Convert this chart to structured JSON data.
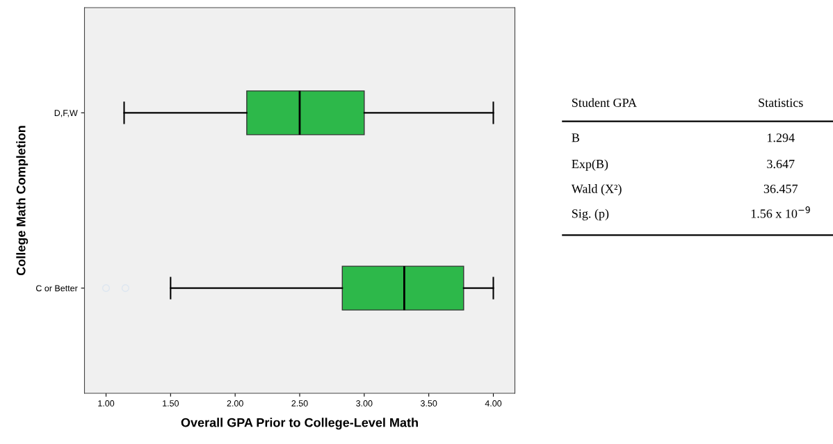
{
  "chart_data": [
    {
      "type": "box",
      "orientation": "horizontal",
      "xlabel": "Overall GPA Prior to College-Level Math",
      "ylabel": "College Math Completion",
      "categories": [
        "D,F,W",
        "C or Better"
      ],
      "color": "#2db84a",
      "boxes": [
        {
          "low": 1.14,
          "q1": 2.09,
          "median": 2.5,
          "q3": 3.0,
          "high": 4.0
        },
        {
          "low": 1.5,
          "q1": 2.83,
          "median": 3.31,
          "q3": 3.77,
          "high": 4.0,
          "outliers": [
            1.0,
            1.15
          ]
        }
      ],
      "xlim": [
        0.833,
        4.167
      ],
      "xticks": [
        {
          "value": 1,
          "label": "1.00"
        },
        {
          "value": 1.5,
          "label": "1.50"
        },
        {
          "value": 2,
          "label": "2.00"
        },
        {
          "value": 2.5,
          "label": "2.50"
        },
        {
          "value": 3,
          "label": "3.00"
        },
        {
          "value": 3.5,
          "label": "3.50"
        },
        {
          "value": 4,
          "label": "4.00"
        }
      ],
      "grid": false
    },
    {
      "type": "other",
      "annotations": [
        "Student GPA",
        "Statistics",
        "B",
        "1.294",
        "Exp(B)",
        "3.647",
        "Wald (X²)",
        "36.457",
        "Sig. (p)",
        "1.56 x 10$^{−9}$"
      ]
    }
  ]
}
